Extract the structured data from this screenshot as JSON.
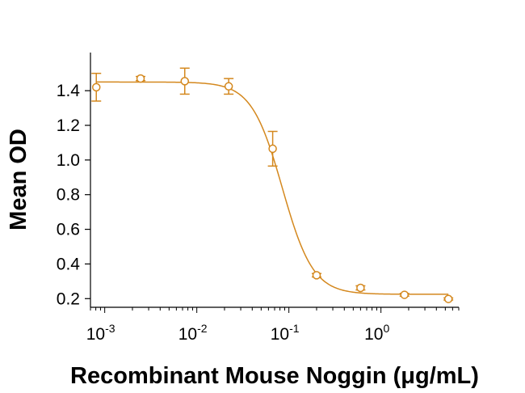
{
  "chart_data": {
    "type": "scatter",
    "title": "",
    "xlabel": "Recombinant Mouse Noggin (μg/mL)",
    "ylabel": "Mean OD",
    "x_scale": "log",
    "xlim": [
      0.0007,
      7
    ],
    "ylim": [
      0.15,
      1.62
    ],
    "x_ticks": [
      {
        "value": 0.001,
        "base": "10",
        "exp": "-3"
      },
      {
        "value": 0.01,
        "base": "10",
        "exp": "-2"
      },
      {
        "value": 0.1,
        "base": "10",
        "exp": "-1"
      },
      {
        "value": 1,
        "base": "10",
        "exp": "0"
      }
    ],
    "y_ticks": [
      {
        "value": 0.2,
        "label": "0.2"
      },
      {
        "value": 0.4,
        "label": "0.4"
      },
      {
        "value": 0.6,
        "label": "0.6"
      },
      {
        "value": 0.8,
        "label": "0.8"
      },
      {
        "value": 1.0,
        "label": "1.0"
      },
      {
        "value": 1.2,
        "label": "1.2"
      },
      {
        "value": 1.4,
        "label": "1.4"
      }
    ],
    "grid": false,
    "series": [
      {
        "name": "Mean OD",
        "color": "#D4881E",
        "points": [
          {
            "x": 0.00081,
            "y": 1.42,
            "err": 0.08
          },
          {
            "x": 0.00245,
            "y": 1.47,
            "err": 0.012
          },
          {
            "x": 0.0074,
            "y": 1.455,
            "err": 0.075
          },
          {
            "x": 0.0222,
            "y": 1.425,
            "err": 0.045
          },
          {
            "x": 0.0667,
            "y": 1.065,
            "err": 0.1
          },
          {
            "x": 0.2,
            "y": 0.335,
            "err": 0.01
          },
          {
            "x": 0.6,
            "y": 0.262,
            "err": 0.012
          },
          {
            "x": 1.8,
            "y": 0.222,
            "err": 0.008
          },
          {
            "x": 5.4,
            "y": 0.198,
            "err": 0.006
          }
        ],
        "fit": {
          "model": "4PL",
          "top": 1.45,
          "bottom": 0.225,
          "ec50": 0.085,
          "hill": 2.6
        }
      }
    ]
  }
}
